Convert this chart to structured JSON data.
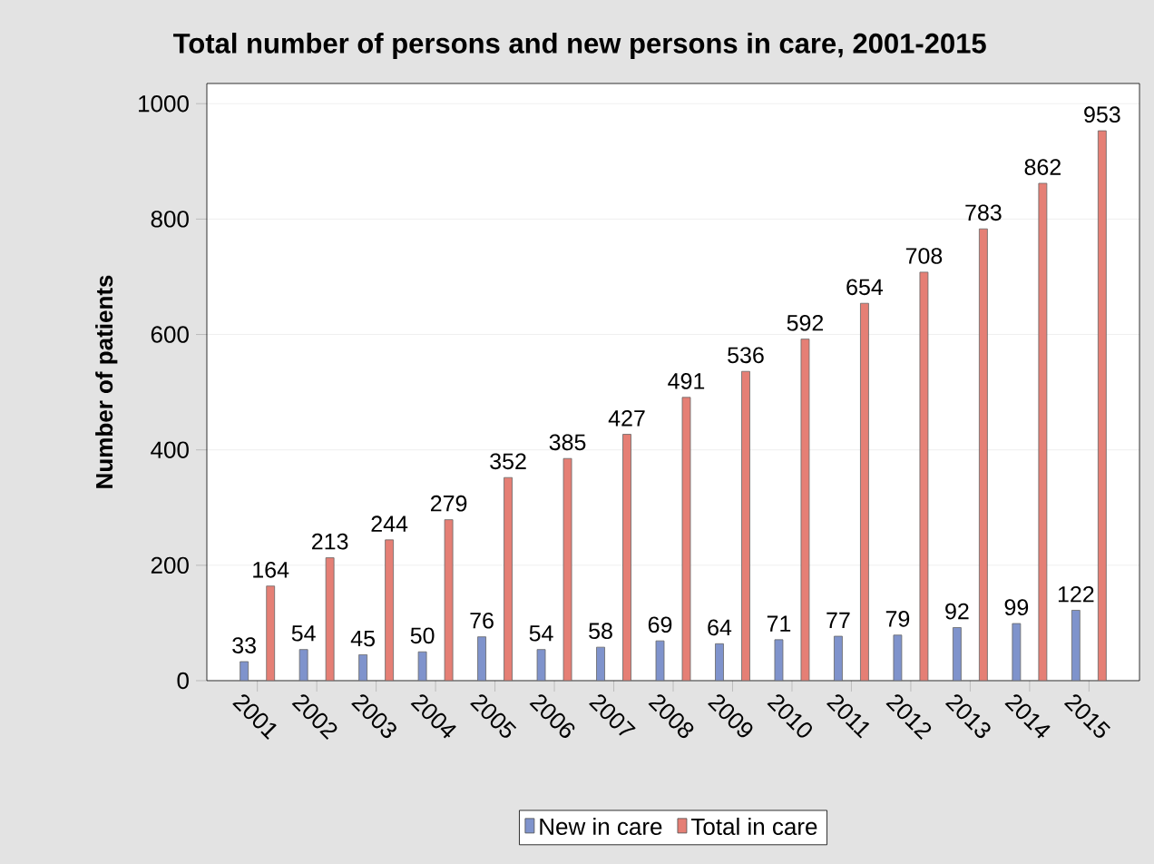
{
  "chart_data": {
    "type": "bar",
    "title": "Total number of persons and new persons in care, 2001-2015",
    "ylabel": "Number of patients",
    "categories": [
      "2001",
      "2002",
      "2003",
      "2004",
      "2005",
      "2006",
      "2007",
      "2008",
      "2009",
      "2010",
      "2011",
      "2012",
      "2013",
      "2014",
      "2015"
    ],
    "series": [
      {
        "name": "New in care",
        "color": "#7f93cc",
        "values": [
          33,
          54,
          45,
          50,
          76,
          54,
          58,
          69,
          64,
          71,
          77,
          79,
          92,
          99,
          122
        ]
      },
      {
        "name": "Total in care",
        "color": "#e57f75",
        "values": [
          164,
          213,
          244,
          279,
          352,
          385,
          427,
          491,
          536,
          592,
          654,
          708,
          783,
          862,
          953
        ]
      }
    ],
    "ylim": [
      0,
      1035
    ],
    "yticks": [
      0,
      200,
      400,
      600,
      800,
      1000
    ],
    "grid": "y",
    "legend": "bottom",
    "data_labels": true
  }
}
